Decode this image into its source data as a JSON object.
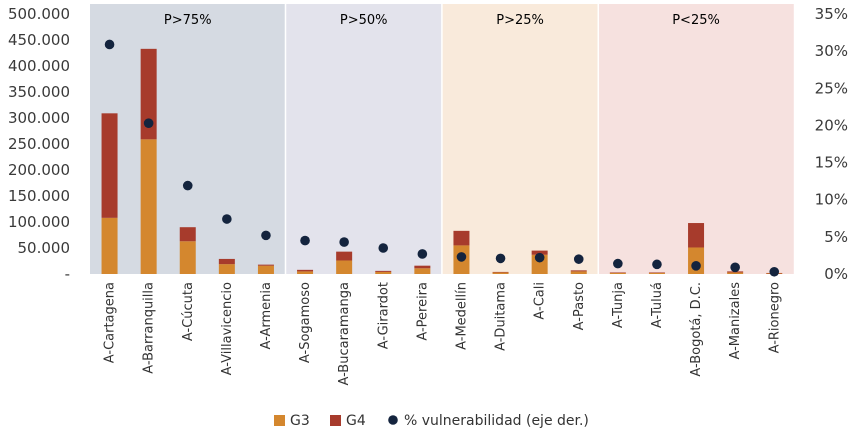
{
  "chart_data": {
    "type": "bar",
    "categories": [
      "A-Cartagena",
      "A-Barranquilla",
      "A-Cúcuta",
      "A-Villavicencio",
      "A-Armenia",
      "A-Sogamoso",
      "A-Bucaramanga",
      "A-Girardot",
      "A-Pereira",
      "A-Medellín",
      "A-Duitama",
      "A-Cali",
      "A-Pasto",
      "A-Tunja",
      "A-Tuluá",
      "A-Bogotá, D.C.",
      "A-Manizales",
      "A-Rionegro"
    ],
    "series": [
      {
        "name": "G3",
        "type": "bar",
        "stack": "main",
        "color": "#D4872E",
        "values": [
          108000,
          259000,
          63000,
          19000,
          16000,
          5000,
          26000,
          4000,
          11000,
          55000,
          3000,
          37000,
          5000,
          2000,
          2000,
          51000,
          3000,
          1000
        ]
      },
      {
        "name": "G4",
        "type": "bar",
        "stack": "main",
        "color": "#A73B2C",
        "values": [
          201000,
          174000,
          27000,
          10000,
          2000,
          3000,
          17000,
          2000,
          5000,
          28000,
          1000,
          8000,
          2000,
          1000,
          1000,
          47000,
          2000,
          1000
        ]
      },
      {
        "name": "% vulnerabilidad (eje der.)",
        "type": "scatter",
        "axis": "right",
        "color": "#14243E",
        "values": [
          30.9,
          20.3,
          11.9,
          7.4,
          5.2,
          4.5,
          4.3,
          3.5,
          2.7,
          2.3,
          2.1,
          2.2,
          2.0,
          1.4,
          1.3,
          1.1,
          0.9,
          0.3
        ]
      }
    ],
    "y_left": {
      "ylim": [
        0,
        500000
      ],
      "ticks": [
        "-",
        "50.000",
        "100.000",
        "150.000",
        "200.000",
        "250.000",
        "300.000",
        "350.000",
        "400.000",
        "450.000",
        "500.000"
      ]
    },
    "y_right": {
      "ylim": [
        0,
        35
      ],
      "ticks": [
        "0%",
        "5%",
        "10%",
        "15%",
        "20%",
        "25%",
        "30%",
        "35%"
      ]
    },
    "bands": [
      {
        "label": "P>75%",
        "from": 0,
        "to": 4,
        "color": "#D5DAE2"
      },
      {
        "label": "P>50%",
        "from": 5,
        "to": 8,
        "color": "#E3E3EC"
      },
      {
        "label": "P>25%",
        "from": 9,
        "to": 12,
        "color": "#F9EADB"
      },
      {
        "label": "P<25%",
        "from": 13,
        "to": 17,
        "color": "#F6E1DF"
      }
    ],
    "legend": {
      "position": "bottom",
      "items": [
        "G3",
        "G4",
        "% vulnerabilidad (eje der.)"
      ]
    },
    "grid": false
  }
}
